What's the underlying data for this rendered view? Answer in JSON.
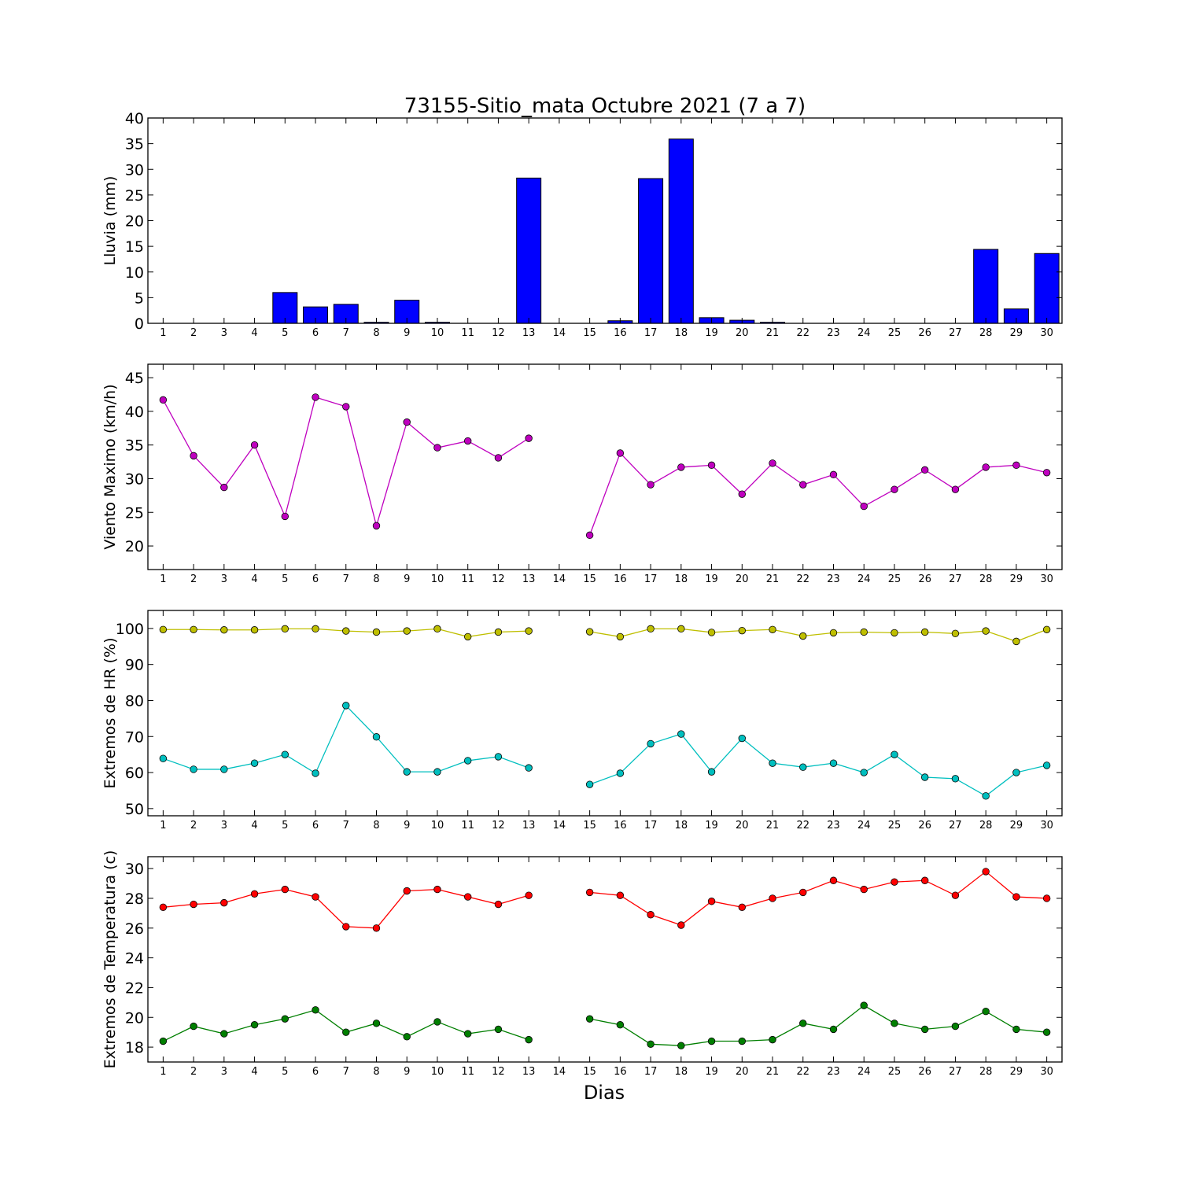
{
  "title": "73155-Sitio_mata Octubre 2021  (7 a 7)",
  "xlabel": "Dias",
  "chart_data": [
    {
      "type": "bar",
      "ylabel": "Lluvia (mm)",
      "ylim": [
        0,
        40
      ],
      "yticks": [
        0,
        5,
        10,
        15,
        20,
        25,
        30,
        35,
        40
      ],
      "categories": [
        "1",
        "2",
        "3",
        "4",
        "5",
        "6",
        "7",
        "8",
        "9",
        "10",
        "11",
        "12",
        "13",
        "14",
        "15",
        "16",
        "17",
        "18",
        "19",
        "20",
        "21",
        "22",
        "23",
        "24",
        "25",
        "26",
        "27",
        "28",
        "29",
        "30"
      ],
      "series": [
        {
          "color": "#0000ff",
          "values": [
            0,
            0,
            0,
            0,
            6.0,
            3.2,
            3.7,
            0.2,
            4.5,
            0.2,
            0,
            0,
            28.3,
            0,
            0,
            0.5,
            28.2,
            35.9,
            1.1,
            0.6,
            0.2,
            0,
            0,
            0,
            0,
            0,
            0,
            14.4,
            2.8,
            13.6
          ]
        }
      ]
    },
    {
      "type": "line",
      "ylabel": "Viento Maximo (km/h)",
      "ylim": [
        16.5,
        47
      ],
      "yticks": [
        20,
        25,
        30,
        35,
        40,
        45
      ],
      "categories": [
        "1",
        "2",
        "3",
        "4",
        "5",
        "6",
        "7",
        "8",
        "9",
        "10",
        "11",
        "12",
        "13",
        "14",
        "15",
        "16",
        "17",
        "18",
        "19",
        "20",
        "21",
        "22",
        "23",
        "24",
        "25",
        "26",
        "27",
        "28",
        "29",
        "30"
      ],
      "series": [
        {
          "color": "#bf00bf",
          "values": [
            41.7,
            33.4,
            28.7,
            35.0,
            24.4,
            42.1,
            40.7,
            23.0,
            38.4,
            34.6,
            35.6,
            33.1,
            36.0,
            null,
            21.6,
            33.8,
            29.1,
            31.7,
            32.0,
            27.7,
            32.3,
            29.1,
            30.6,
            25.9,
            28.4,
            31.3,
            28.4,
            31.7,
            32.0,
            30.9
          ]
        }
      ]
    },
    {
      "type": "line",
      "ylabel": "Extremos de HR (%)",
      "ylim": [
        48,
        105
      ],
      "yticks": [
        50,
        60,
        70,
        80,
        90,
        100
      ],
      "categories": [
        "1",
        "2",
        "3",
        "4",
        "5",
        "6",
        "7",
        "8",
        "9",
        "10",
        "11",
        "12",
        "13",
        "14",
        "15",
        "16",
        "17",
        "18",
        "19",
        "20",
        "21",
        "22",
        "23",
        "24",
        "25",
        "26",
        "27",
        "28",
        "29",
        "30"
      ],
      "series": [
        {
          "color": "#bfbf00",
          "values": [
            99.7,
            99.7,
            99.6,
            99.6,
            99.9,
            99.9,
            99.3,
            99.0,
            99.3,
            99.9,
            97.7,
            99.0,
            99.3,
            null,
            99.1,
            97.7,
            99.9,
            99.9,
            98.9,
            99.4,
            99.7,
            97.9,
            98.8,
            99.0,
            98.8,
            99.0,
            98.6,
            99.3,
            96.4,
            99.7
          ]
        },
        {
          "color": "#00bfbf",
          "values": [
            63.9,
            60.9,
            60.9,
            62.6,
            65.0,
            59.8,
            78.6,
            69.9,
            60.2,
            60.2,
            63.3,
            64.4,
            61.3,
            null,
            56.7,
            59.8,
            68.0,
            70.7,
            60.2,
            69.5,
            62.6,
            61.5,
            62.6,
            60.0,
            65.0,
            58.7,
            58.3,
            53.5,
            60.0,
            62.0
          ]
        }
      ]
    },
    {
      "type": "line",
      "ylabel": "Extremos de Temperatura (c)",
      "ylim": [
        17,
        30.8
      ],
      "yticks": [
        18,
        20,
        22,
        24,
        26,
        28,
        30
      ],
      "categories": [
        "1",
        "2",
        "3",
        "4",
        "5",
        "6",
        "7",
        "8",
        "9",
        "10",
        "11",
        "12",
        "13",
        "14",
        "15",
        "16",
        "17",
        "18",
        "19",
        "20",
        "21",
        "22",
        "23",
        "24",
        "25",
        "26",
        "27",
        "28",
        "29",
        "30"
      ],
      "series": [
        {
          "color": "#ff0000",
          "values": [
            27.4,
            27.6,
            27.7,
            28.3,
            28.6,
            28.1,
            26.1,
            26.0,
            28.5,
            28.6,
            28.1,
            27.6,
            28.2,
            null,
            28.4,
            28.2,
            26.9,
            26.2,
            27.8,
            27.4,
            28.0,
            28.4,
            29.2,
            28.6,
            29.1,
            29.2,
            28.2,
            29.8,
            28.1,
            28.0
          ]
        },
        {
          "color": "#007f00",
          "values": [
            18.4,
            19.4,
            18.9,
            19.5,
            19.9,
            20.5,
            19.0,
            19.6,
            18.7,
            19.7,
            18.9,
            19.2,
            18.5,
            null,
            19.9,
            19.5,
            18.2,
            18.1,
            18.4,
            18.4,
            18.5,
            19.6,
            19.2,
            20.8,
            19.6,
            19.2,
            19.4,
            20.4,
            19.2,
            19.0
          ]
        }
      ]
    }
  ]
}
